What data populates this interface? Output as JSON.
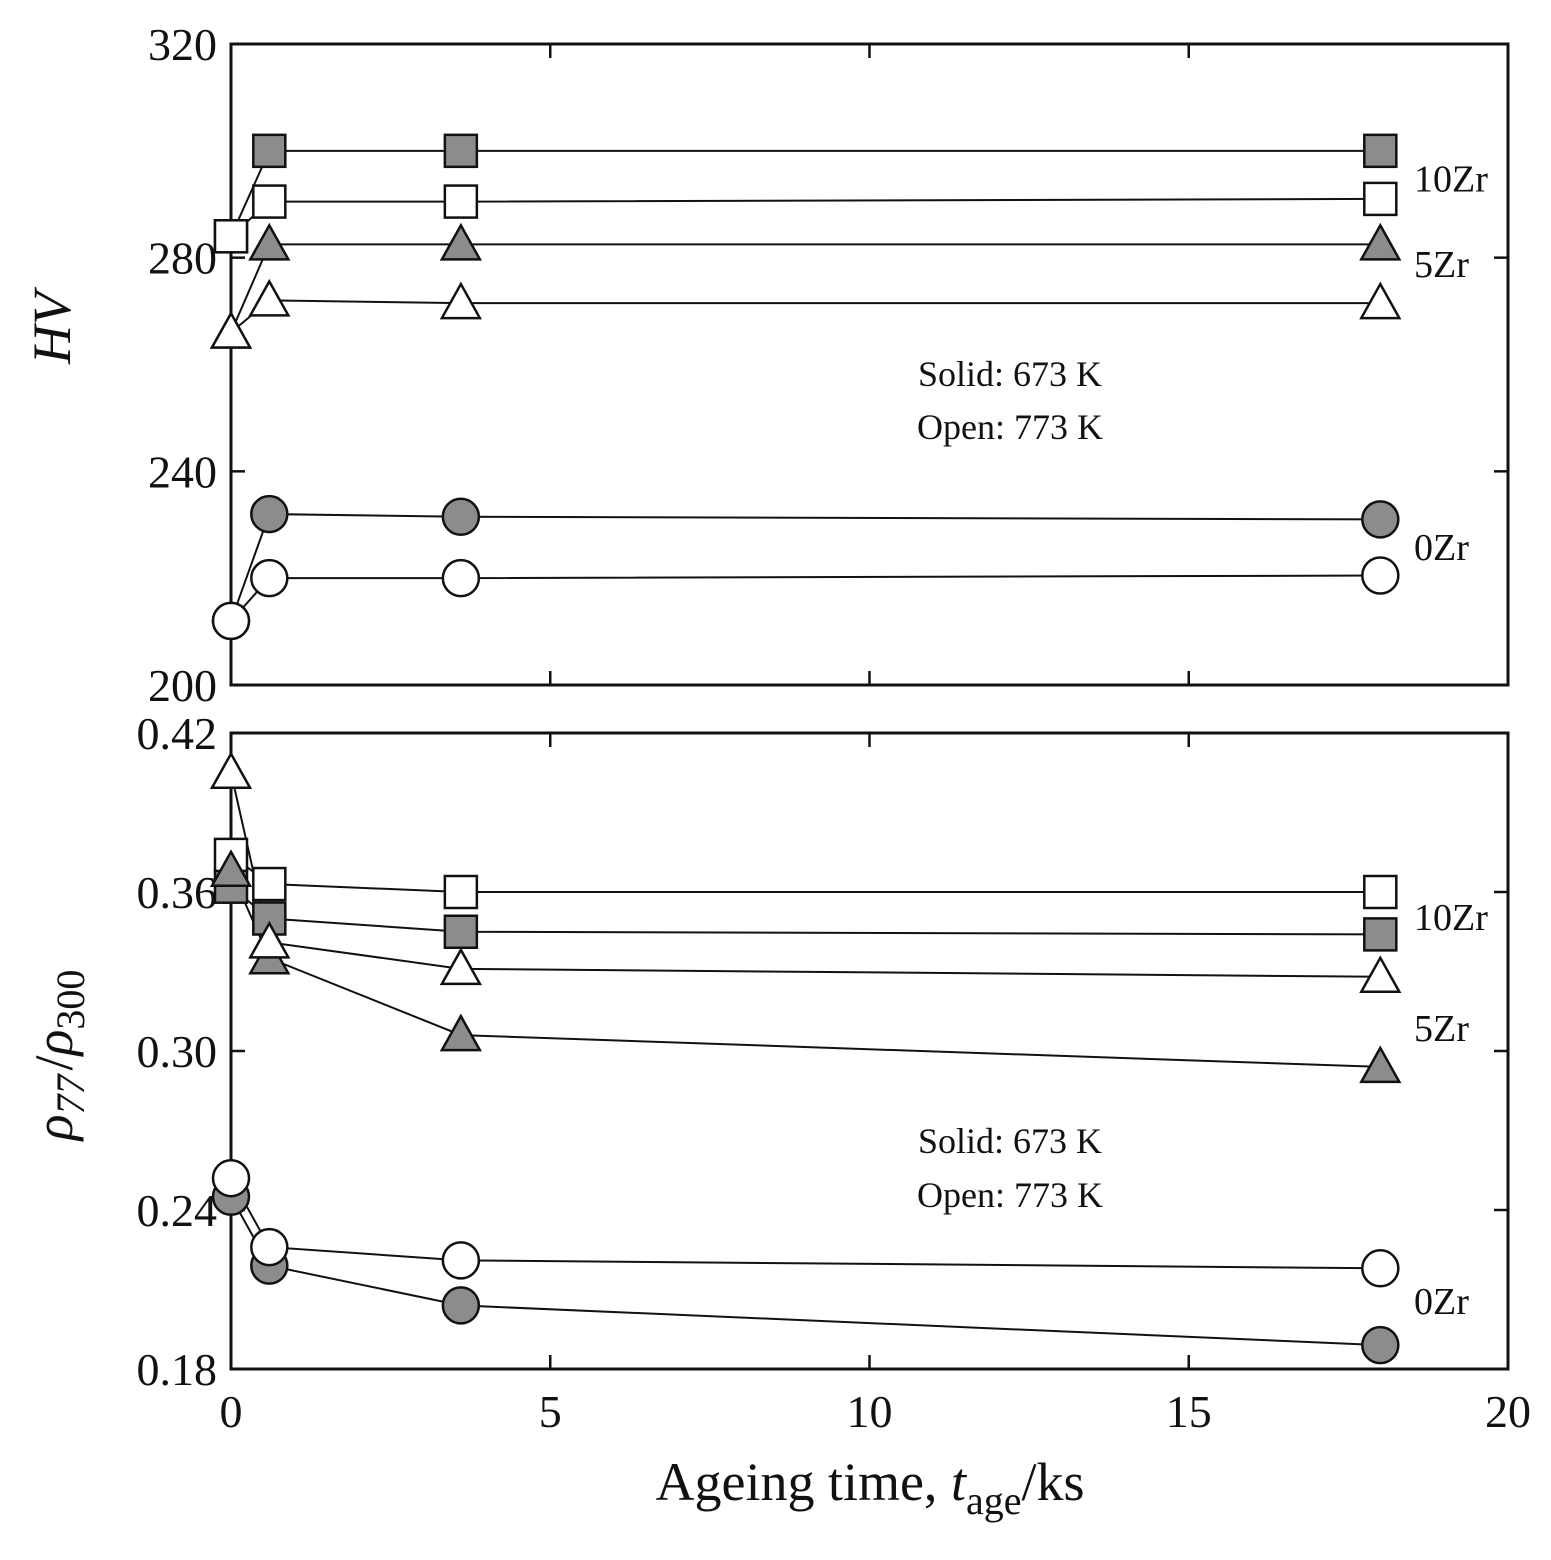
{
  "chart_data": [
    {
      "type": "line",
      "panel": "top",
      "ylabel": "HV",
      "xlabel": "",
      "xlim": [
        0,
        20
      ],
      "ylim": [
        200,
        320
      ],
      "yticks": [
        "200",
        "240",
        "280",
        "320"
      ],
      "annotation": [
        "Solid: 673 K",
        "Open: 773 K"
      ],
      "group_labels": [
        {
          "text": "10Zr",
          "y": 295
        },
        {
          "text": "5Zr",
          "y": 279
        },
        {
          "text": "0Zr",
          "y": 226
        }
      ],
      "series": [
        {
          "group": "10Zr",
          "marker": "square",
          "fill": "solid",
          "x": [
            0,
            0.6,
            3.6,
            18
          ],
          "y": [
            284,
            300,
            300,
            300
          ]
        },
        {
          "group": "10Zr",
          "marker": "square",
          "fill": "open",
          "x": [
            0,
            0.6,
            3.6,
            18
          ],
          "y": [
            284,
            290.5,
            290.5,
            291
          ]
        },
        {
          "group": "5Zr",
          "marker": "triangle",
          "fill": "solid",
          "x": [
            0,
            0.6,
            3.6,
            18
          ],
          "y": [
            266,
            282.5,
            282.5,
            282.5
          ]
        },
        {
          "group": "5Zr",
          "marker": "triangle",
          "fill": "open",
          "x": [
            0,
            0.6,
            3.6,
            18
          ],
          "y": [
            266,
            272,
            271.5,
            271.5
          ]
        },
        {
          "group": "0Zr",
          "marker": "circle",
          "fill": "solid",
          "x": [
            0,
            0.6,
            3.6,
            18
          ],
          "y": [
            212,
            232,
            231.5,
            231
          ]
        },
        {
          "group": "0Zr",
          "marker": "circle",
          "fill": "open",
          "x": [
            0,
            0.6,
            3.6,
            18
          ],
          "y": [
            212,
            220,
            220,
            220.5
          ]
        }
      ]
    },
    {
      "type": "line",
      "panel": "bottom",
      "ylabel": "ρ77/ρ300",
      "ylabel_parts": {
        "rho": "ρ",
        "sub1": "77",
        "slash": "/",
        "sub2": "300"
      },
      "xlabel": "Ageing time, tage/ks",
      "xlabel_parts": {
        "prefix": "Ageing time, ",
        "italic": "t",
        "sub": "age",
        "suffix": "/ks"
      },
      "xlim": [
        0,
        20
      ],
      "xticks": [
        "0",
        "5",
        "10",
        "15",
        "20"
      ],
      "ylim": [
        0.18,
        0.42
      ],
      "yticks": [
        "0.18",
        "0.24",
        "0.30",
        "0.36",
        "0.42"
      ],
      "annotation": [
        "Solid: 673 K",
        "Open: 773 K"
      ],
      "group_labels": [
        {
          "text": "10Zr",
          "y": 0.351
        },
        {
          "text": "5Zr",
          "y": 0.309
        },
        {
          "text": "0Zr",
          "y": 0.206
        }
      ],
      "series": [
        {
          "group": "10Zr",
          "marker": "square",
          "fill": "solid",
          "x": [
            0,
            0.6,
            3.6,
            18
          ],
          "y": [
            0.362,
            0.35,
            0.345,
            0.344
          ]
        },
        {
          "group": "10Zr",
          "marker": "square",
          "fill": "open",
          "x": [
            0,
            0.6,
            3.6,
            18
          ],
          "y": [
            0.374,
            0.363,
            0.36,
            0.36
          ]
        },
        {
          "group": "5Zr",
          "marker": "triangle",
          "fill": "solid",
          "x": [
            0,
            0.6,
            3.6,
            18
          ],
          "y": [
            0.368,
            0.335,
            0.306,
            0.294
          ]
        },
        {
          "group": "5Zr",
          "marker": "triangle",
          "fill": "open",
          "x": [
            0,
            0.6,
            3.6,
            18
          ],
          "y": [
            0.405,
            0.341,
            0.331,
            0.328
          ]
        },
        {
          "group": "0Zr",
          "marker": "circle",
          "fill": "solid",
          "x": [
            0,
            0.6,
            3.6,
            18
          ],
          "y": [
            0.245,
            0.219,
            0.204,
            0.189
          ]
        },
        {
          "group": "0Zr",
          "marker": "circle",
          "fill": "open",
          "x": [
            0,
            0.6,
            3.6,
            18
          ],
          "y": [
            0.252,
            0.226,
            0.221,
            0.218
          ]
        }
      ]
    }
  ]
}
